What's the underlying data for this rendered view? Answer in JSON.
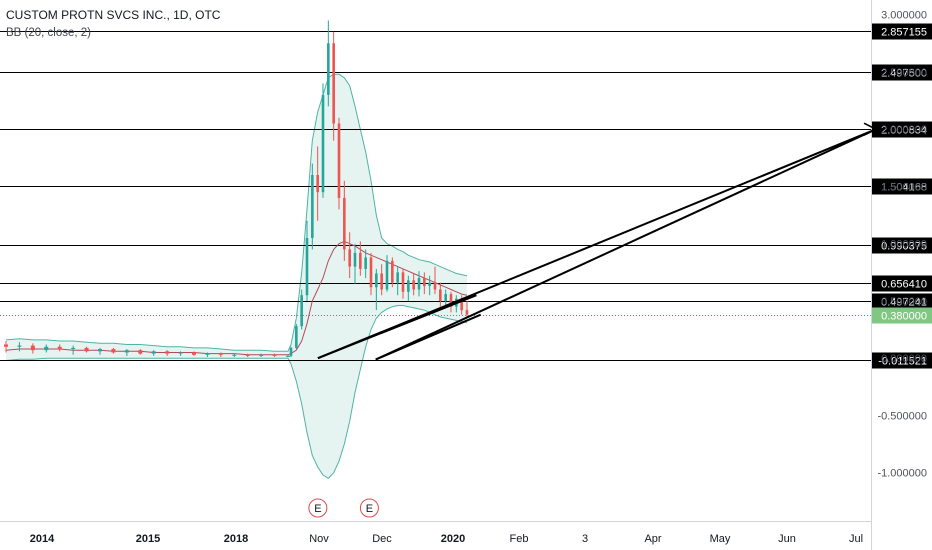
{
  "header": {
    "title": "CUSTOM PROTN SVCS INC., 1D, OTC",
    "indicator": "BB (20, close, 2)"
  },
  "colors": {
    "up": "#26a69a",
    "down": "#ef5350",
    "band": "#4fb3a6",
    "band_fill": "#e5f4f1",
    "basis": "#b5485d",
    "level_line": "#000000",
    "last_price_bg": "#81c784",
    "earnings": "#e04b4b",
    "axis_text": "#131722"
  },
  "chart_data": {
    "type": "candlestick",
    "title": "CUSTOM PROTN SVCS INC., 1D, OTC",
    "indicator": "BB (20, close, 2)",
    "ylim": [
      -1.16,
      3.05
    ],
    "y_ticks": [
      3.0,
      2.5,
      2.0,
      1.5,
      1.0,
      0.5,
      0.0,
      -0.5,
      -1.0
    ],
    "y_tick_labels": [
      "3.000000",
      "2.500000",
      "2.000000",
      "1.500000",
      "1.000000",
      "0.500000",
      "0.000000",
      "-0.500000",
      "-1.000000"
    ],
    "x_ticks": [
      "2014",
      "2015",
      "2018",
      "Nov",
      "Dec",
      "2020",
      "Feb",
      "3",
      "Apr",
      "May",
      "Jun",
      "Jul"
    ],
    "horizontal_levels": [
      2.857155,
      2.4975,
      2.000834,
      1.504168,
      0.990375,
      0.65641,
      0.497241,
      -0.011521
    ],
    "horizontal_level_labels": [
      "2.857155",
      "2.497500",
      "2.000834",
      "1.504168",
      "0.990375",
      "0.656410",
      "0.497241",
      "-0.011521"
    ],
    "last_price": 0.38,
    "last_price_label": "0.380000",
    "earnings_markers": [
      "E",
      "E"
    ],
    "candles": [
      {
        "o": 0.12,
        "h": 0.15,
        "l": 0.05,
        "c": 0.1
      },
      {
        "o": 0.1,
        "h": 0.14,
        "l": 0.06,
        "c": 0.11
      },
      {
        "o": 0.11,
        "h": 0.13,
        "l": 0.04,
        "c": 0.07
      },
      {
        "o": 0.07,
        "h": 0.12,
        "l": 0.05,
        "c": 0.1
      },
      {
        "o": 0.1,
        "h": 0.12,
        "l": 0.06,
        "c": 0.08
      },
      {
        "o": 0.08,
        "h": 0.11,
        "l": 0.03,
        "c": 0.09
      },
      {
        "o": 0.09,
        "h": 0.1,
        "l": 0.05,
        "c": 0.06
      },
      {
        "o": 0.06,
        "h": 0.09,
        "l": 0.03,
        "c": 0.08
      },
      {
        "o": 0.08,
        "h": 0.09,
        "l": 0.04,
        "c": 0.05
      },
      {
        "o": 0.05,
        "h": 0.08,
        "l": 0.02,
        "c": 0.07
      },
      {
        "o": 0.07,
        "h": 0.08,
        "l": 0.03,
        "c": 0.04
      },
      {
        "o": 0.04,
        "h": 0.07,
        "l": 0.02,
        "c": 0.06
      },
      {
        "o": 0.06,
        "h": 0.07,
        "l": 0.02,
        "c": 0.04
      },
      {
        "o": 0.04,
        "h": 0.06,
        "l": 0.02,
        "c": 0.05
      },
      {
        "o": 0.05,
        "h": 0.06,
        "l": 0.02,
        "c": 0.03
      },
      {
        "o": 0.03,
        "h": 0.05,
        "l": 0.01,
        "c": 0.04
      },
      {
        "o": 0.04,
        "h": 0.05,
        "l": 0.01,
        "c": 0.03
      },
      {
        "o": 0.03,
        "h": 0.04,
        "l": 0.01,
        "c": 0.03
      },
      {
        "o": 0.03,
        "h": 0.04,
        "l": 0.01,
        "c": 0.02
      },
      {
        "o": 0.02,
        "h": 0.04,
        "l": 0.01,
        "c": 0.03
      },
      {
        "o": 0.03,
        "h": 0.04,
        "l": 0.01,
        "c": 0.02
      },
      {
        "o": 0.02,
        "h": 0.03,
        "l": 0.01,
        "c": 0.02
      },
      {
        "o": 0.02,
        "h": 0.1,
        "l": 0.01,
        "c": 0.09
      },
      {
        "o": 0.09,
        "h": 0.3,
        "l": 0.08,
        "c": 0.28
      },
      {
        "o": 0.28,
        "h": 0.6,
        "l": 0.25,
        "c": 0.55
      },
      {
        "o": 0.55,
        "h": 1.2,
        "l": 0.5,
        "c": 1.05
      },
      {
        "o": 1.05,
        "h": 1.7,
        "l": 0.95,
        "c": 1.6
      },
      {
        "o": 1.6,
        "h": 1.85,
        "l": 1.2,
        "c": 1.45
      },
      {
        "o": 1.45,
        "h": 2.4,
        "l": 1.4,
        "c": 2.3
      },
      {
        "o": 2.3,
        "h": 2.95,
        "l": 2.2,
        "c": 2.75
      },
      {
        "o": 2.75,
        "h": 2.85,
        "l": 1.9,
        "c": 2.05
      },
      {
        "o": 2.05,
        "h": 2.1,
        "l": 1.3,
        "c": 1.4
      },
      {
        "o": 1.4,
        "h": 1.55,
        "l": 0.85,
        "c": 0.95
      },
      {
        "o": 0.95,
        "h": 1.1,
        "l": 0.7,
        "c": 0.8
      },
      {
        "o": 0.8,
        "h": 1.0,
        "l": 0.65,
        "c": 0.92
      },
      {
        "o": 0.92,
        "h": 1.02,
        "l": 0.72,
        "c": 0.78
      },
      {
        "o": 0.78,
        "h": 0.95,
        "l": 0.7,
        "c": 0.88
      },
      {
        "o": 0.88,
        "h": 0.92,
        "l": 0.55,
        "c": 0.62
      },
      {
        "o": 0.62,
        "h": 0.78,
        "l": 0.42,
        "c": 0.74
      },
      {
        "o": 0.74,
        "h": 0.82,
        "l": 0.55,
        "c": 0.6
      },
      {
        "o": 0.6,
        "h": 0.9,
        "l": 0.58,
        "c": 0.85
      },
      {
        "o": 0.85,
        "h": 0.88,
        "l": 0.62,
        "c": 0.66
      },
      {
        "o": 0.66,
        "h": 0.8,
        "l": 0.55,
        "c": 0.75
      },
      {
        "o": 0.75,
        "h": 0.78,
        "l": 0.52,
        "c": 0.58
      },
      {
        "o": 0.58,
        "h": 0.72,
        "l": 0.5,
        "c": 0.68
      },
      {
        "o": 0.68,
        "h": 0.74,
        "l": 0.55,
        "c": 0.6
      },
      {
        "o": 0.6,
        "h": 0.76,
        "l": 0.54,
        "c": 0.7
      },
      {
        "o": 0.7,
        "h": 0.75,
        "l": 0.56,
        "c": 0.63
      },
      {
        "o": 0.63,
        "h": 0.72,
        "l": 0.55,
        "c": 0.66
      },
      {
        "o": 0.66,
        "h": 0.8,
        "l": 0.56,
        "c": 0.6
      },
      {
        "o": 0.6,
        "h": 0.66,
        "l": 0.45,
        "c": 0.5
      },
      {
        "o": 0.5,
        "h": 0.6,
        "l": 0.44,
        "c": 0.56
      },
      {
        "o": 0.56,
        "h": 0.58,
        "l": 0.4,
        "c": 0.45
      },
      {
        "o": 0.45,
        "h": 0.55,
        "l": 0.4,
        "c": 0.52
      },
      {
        "o": 0.52,
        "h": 0.55,
        "l": 0.38,
        "c": 0.42
      },
      {
        "o": 0.42,
        "h": 0.5,
        "l": 0.35,
        "c": 0.38
      }
    ],
    "bb_upper": [
      0.16,
      0.17,
      0.16,
      0.16,
      0.15,
      0.15,
      0.14,
      0.13,
      0.13,
      0.12,
      0.12,
      0.11,
      0.1,
      0.1,
      0.09,
      0.09,
      0.08,
      0.07,
      0.07,
      0.07,
      0.06,
      0.06,
      0.12,
      0.35,
      0.75,
      1.3,
      1.9,
      2.15,
      2.3,
      2.45,
      2.48,
      2.48,
      2.45,
      2.38,
      2.2,
      2.0,
      1.8,
      1.55,
      1.25,
      1.05,
      1.0,
      0.98,
      0.95,
      0.93,
      0.9,
      0.88,
      0.86,
      0.85,
      0.84,
      0.82,
      0.8,
      0.78,
      0.76,
      0.74,
      0.73,
      0.72
    ],
    "bb_lower": [
      -0.02,
      -0.01,
      -0.01,
      0.0,
      0.0,
      0.0,
      0.0,
      0.0,
      0.0,
      0.0,
      0.0,
      0.0,
      0.0,
      0.0,
      0.0,
      0.0,
      0.0,
      0.0,
      0.0,
      0.0,
      0.0,
      0.0,
      -0.05,
      -0.2,
      -0.4,
      -0.65,
      -0.85,
      -0.95,
      -1.02,
      -1.05,
      -1.0,
      -0.9,
      -0.75,
      -0.55,
      -0.3,
      -0.1,
      0.1,
      0.25,
      0.35,
      0.4,
      0.43,
      0.45,
      0.46,
      0.46,
      0.45,
      0.44,
      0.43,
      0.42,
      0.4,
      0.38,
      0.36,
      0.35,
      0.34,
      0.33,
      0.32,
      0.31
    ],
    "bb_basis": [
      0.07,
      0.08,
      0.08,
      0.08,
      0.08,
      0.07,
      0.07,
      0.07,
      0.06,
      0.06,
      0.06,
      0.05,
      0.05,
      0.05,
      0.05,
      0.04,
      0.04,
      0.04,
      0.03,
      0.03,
      0.03,
      0.03,
      0.04,
      0.07,
      0.15,
      0.3,
      0.5,
      0.6,
      0.7,
      0.85,
      0.95,
      1.0,
      1.02,
      1.0,
      0.98,
      0.95,
      0.92,
      0.9,
      0.88,
      0.86,
      0.84,
      0.82,
      0.8,
      0.78,
      0.76,
      0.74,
      0.72,
      0.7,
      0.68,
      0.66,
      0.64,
      0.62,
      0.6,
      0.58,
      0.56,
      0.55
    ],
    "drawn_lines": [
      {
        "x1": "2019-10-23",
        "y1": 0.0,
        "x2": "2020-07-10",
        "y2": 2.0
      },
      {
        "x1": "2019-11-28",
        "y1": -0.011521,
        "x2": "2020-07-10",
        "y2": 2.0
      },
      {
        "x1": "2019-10-23",
        "y1": 0.0,
        "x2": "2020-01-12",
        "y2": 0.55
      },
      {
        "x1": "2019-11-28",
        "y1": -0.011521,
        "x2": "2020-01-14",
        "y2": 0.38
      }
    ]
  }
}
